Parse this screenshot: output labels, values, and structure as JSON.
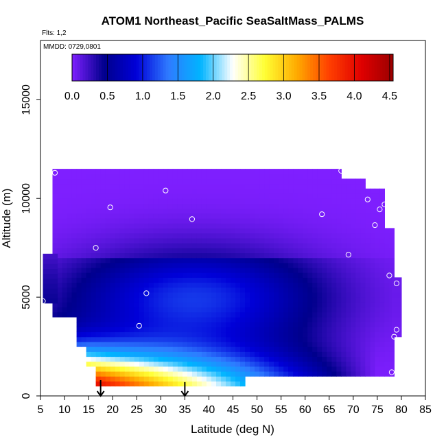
{
  "chart_data": {
    "type": "heatmap",
    "title": "ATOM1 Northeast_Pacific SeaSaltMass_PALMS",
    "annotations": [
      "Flts: 1,2",
      "MMDD: 0729,0801"
    ],
    "xlabel": "Latitude (deg N)",
    "ylabel": "Altitude (m)",
    "xlim": [
      5,
      85
    ],
    "ylim": [
      0,
      18000
    ],
    "x_ticks": [
      "5",
      "10",
      "15",
      "20",
      "25",
      "30",
      "35",
      "40",
      "45",
      "50",
      "55",
      "60",
      "65",
      "70",
      "75",
      "80",
      "85"
    ],
    "y_ticks": [
      "0",
      "5000",
      "10000",
      "15000"
    ],
    "colorbar": {
      "ticks": [
        "0.0",
        "0.5",
        "1.0",
        "1.5",
        "2.0",
        "2.5",
        "3.0",
        "3.5",
        "4.0",
        "4.5"
      ],
      "range": [
        0,
        4.55
      ],
      "colors": [
        "#7f1fff",
        "#00008c",
        "#0000d8",
        "#2f7bff",
        "#00b4ff",
        "#ffffff",
        "#ffff33",
        "#ffaa00",
        "#ff4000",
        "#e00000",
        "#9b0000"
      ]
    },
    "surface": [
      {
        "lat_min": 9.0,
        "lat_max": 78.0,
        "alt_min": 0,
        "alt_max": 11500
      },
      {
        "lat_min": 16.0,
        "lat_max": 48.0,
        "alt_min": 500,
        "alt_max": 1800
      }
    ],
    "flight_points": [
      {
        "lat": 8.0,
        "alt": 11300
      },
      {
        "lat": 19.5,
        "alt": 9550
      },
      {
        "lat": 31.0,
        "alt": 10400
      },
      {
        "lat": 36.5,
        "alt": 8950
      },
      {
        "lat": 63.5,
        "alt": 9200
      },
      {
        "lat": 67.5,
        "alt": 11400
      },
      {
        "lat": 73.0,
        "alt": 9950
      },
      {
        "lat": 75.5,
        "alt": 9450
      },
      {
        "lat": 76.5,
        "alt": 9700
      },
      {
        "lat": 74.5,
        "alt": 8650
      },
      {
        "lat": 16.5,
        "alt": 7500
      },
      {
        "lat": 69.0,
        "alt": 7150
      },
      {
        "lat": 77.5,
        "alt": 6100
      },
      {
        "lat": 79.0,
        "alt": 5700
      },
      {
        "lat": 5.5,
        "alt": 4800
      },
      {
        "lat": 27.0,
        "alt": 5200
      },
      {
        "lat": 25.5,
        "alt": 3550
      },
      {
        "lat": 79.0,
        "alt": 3350
      },
      {
        "lat": 78.5,
        "alt": 3000
      },
      {
        "lat": 78.0,
        "alt": 1200
      },
      {
        "lat": 17.5,
        "alt": 150
      }
    ],
    "arrows": [
      {
        "lat": 17.5,
        "alt_top": 800,
        "alt_bottom": 0
      },
      {
        "lat": 35.0,
        "alt_top": 700,
        "alt_bottom": 0
      }
    ]
  }
}
